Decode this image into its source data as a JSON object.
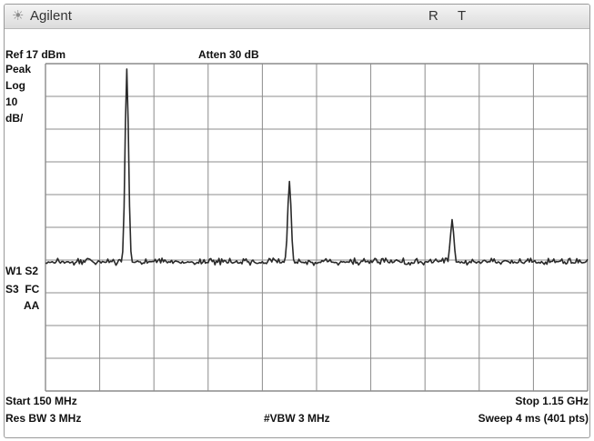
{
  "window": {
    "title": "Agilent",
    "status_flags": [
      "R",
      "T"
    ]
  },
  "header": {
    "ref_level": "Ref 17 dBm",
    "attenuation": "Atten 30 dB"
  },
  "left_annotations": {
    "detector": "Peak",
    "scale_type": "Log",
    "scale_value": "10",
    "scale_unit": "dB/",
    "trace_line1": "W1 S2",
    "trace_line2": "S3  FC",
    "coupling": "AA"
  },
  "footer": {
    "start": "Start 150 MHz",
    "stop": "Stop 1.15 GHz",
    "res_bw": "Res BW 3 MHz",
    "vbw": "#VBW 3 MHz",
    "sweep": "Sweep 4 ms (401 pts)"
  },
  "colors": {
    "trace": "#2a2a2a",
    "grid": "#8c8c8c",
    "background": "#ffffff"
  },
  "chart_data": {
    "type": "line",
    "x_unit": "MHz",
    "y_unit": "dBm",
    "xlim": [
      150,
      1150
    ],
    "ylim": [
      -83,
      17
    ],
    "grid": true,
    "noise_floor_dbm": -44,
    "peaks": [
      {
        "freq_mhz": 300,
        "level_dbm": 15
      },
      {
        "freq_mhz": 600,
        "level_dbm": -19
      },
      {
        "freq_mhz": 900,
        "level_dbm": -31
      }
    ]
  }
}
